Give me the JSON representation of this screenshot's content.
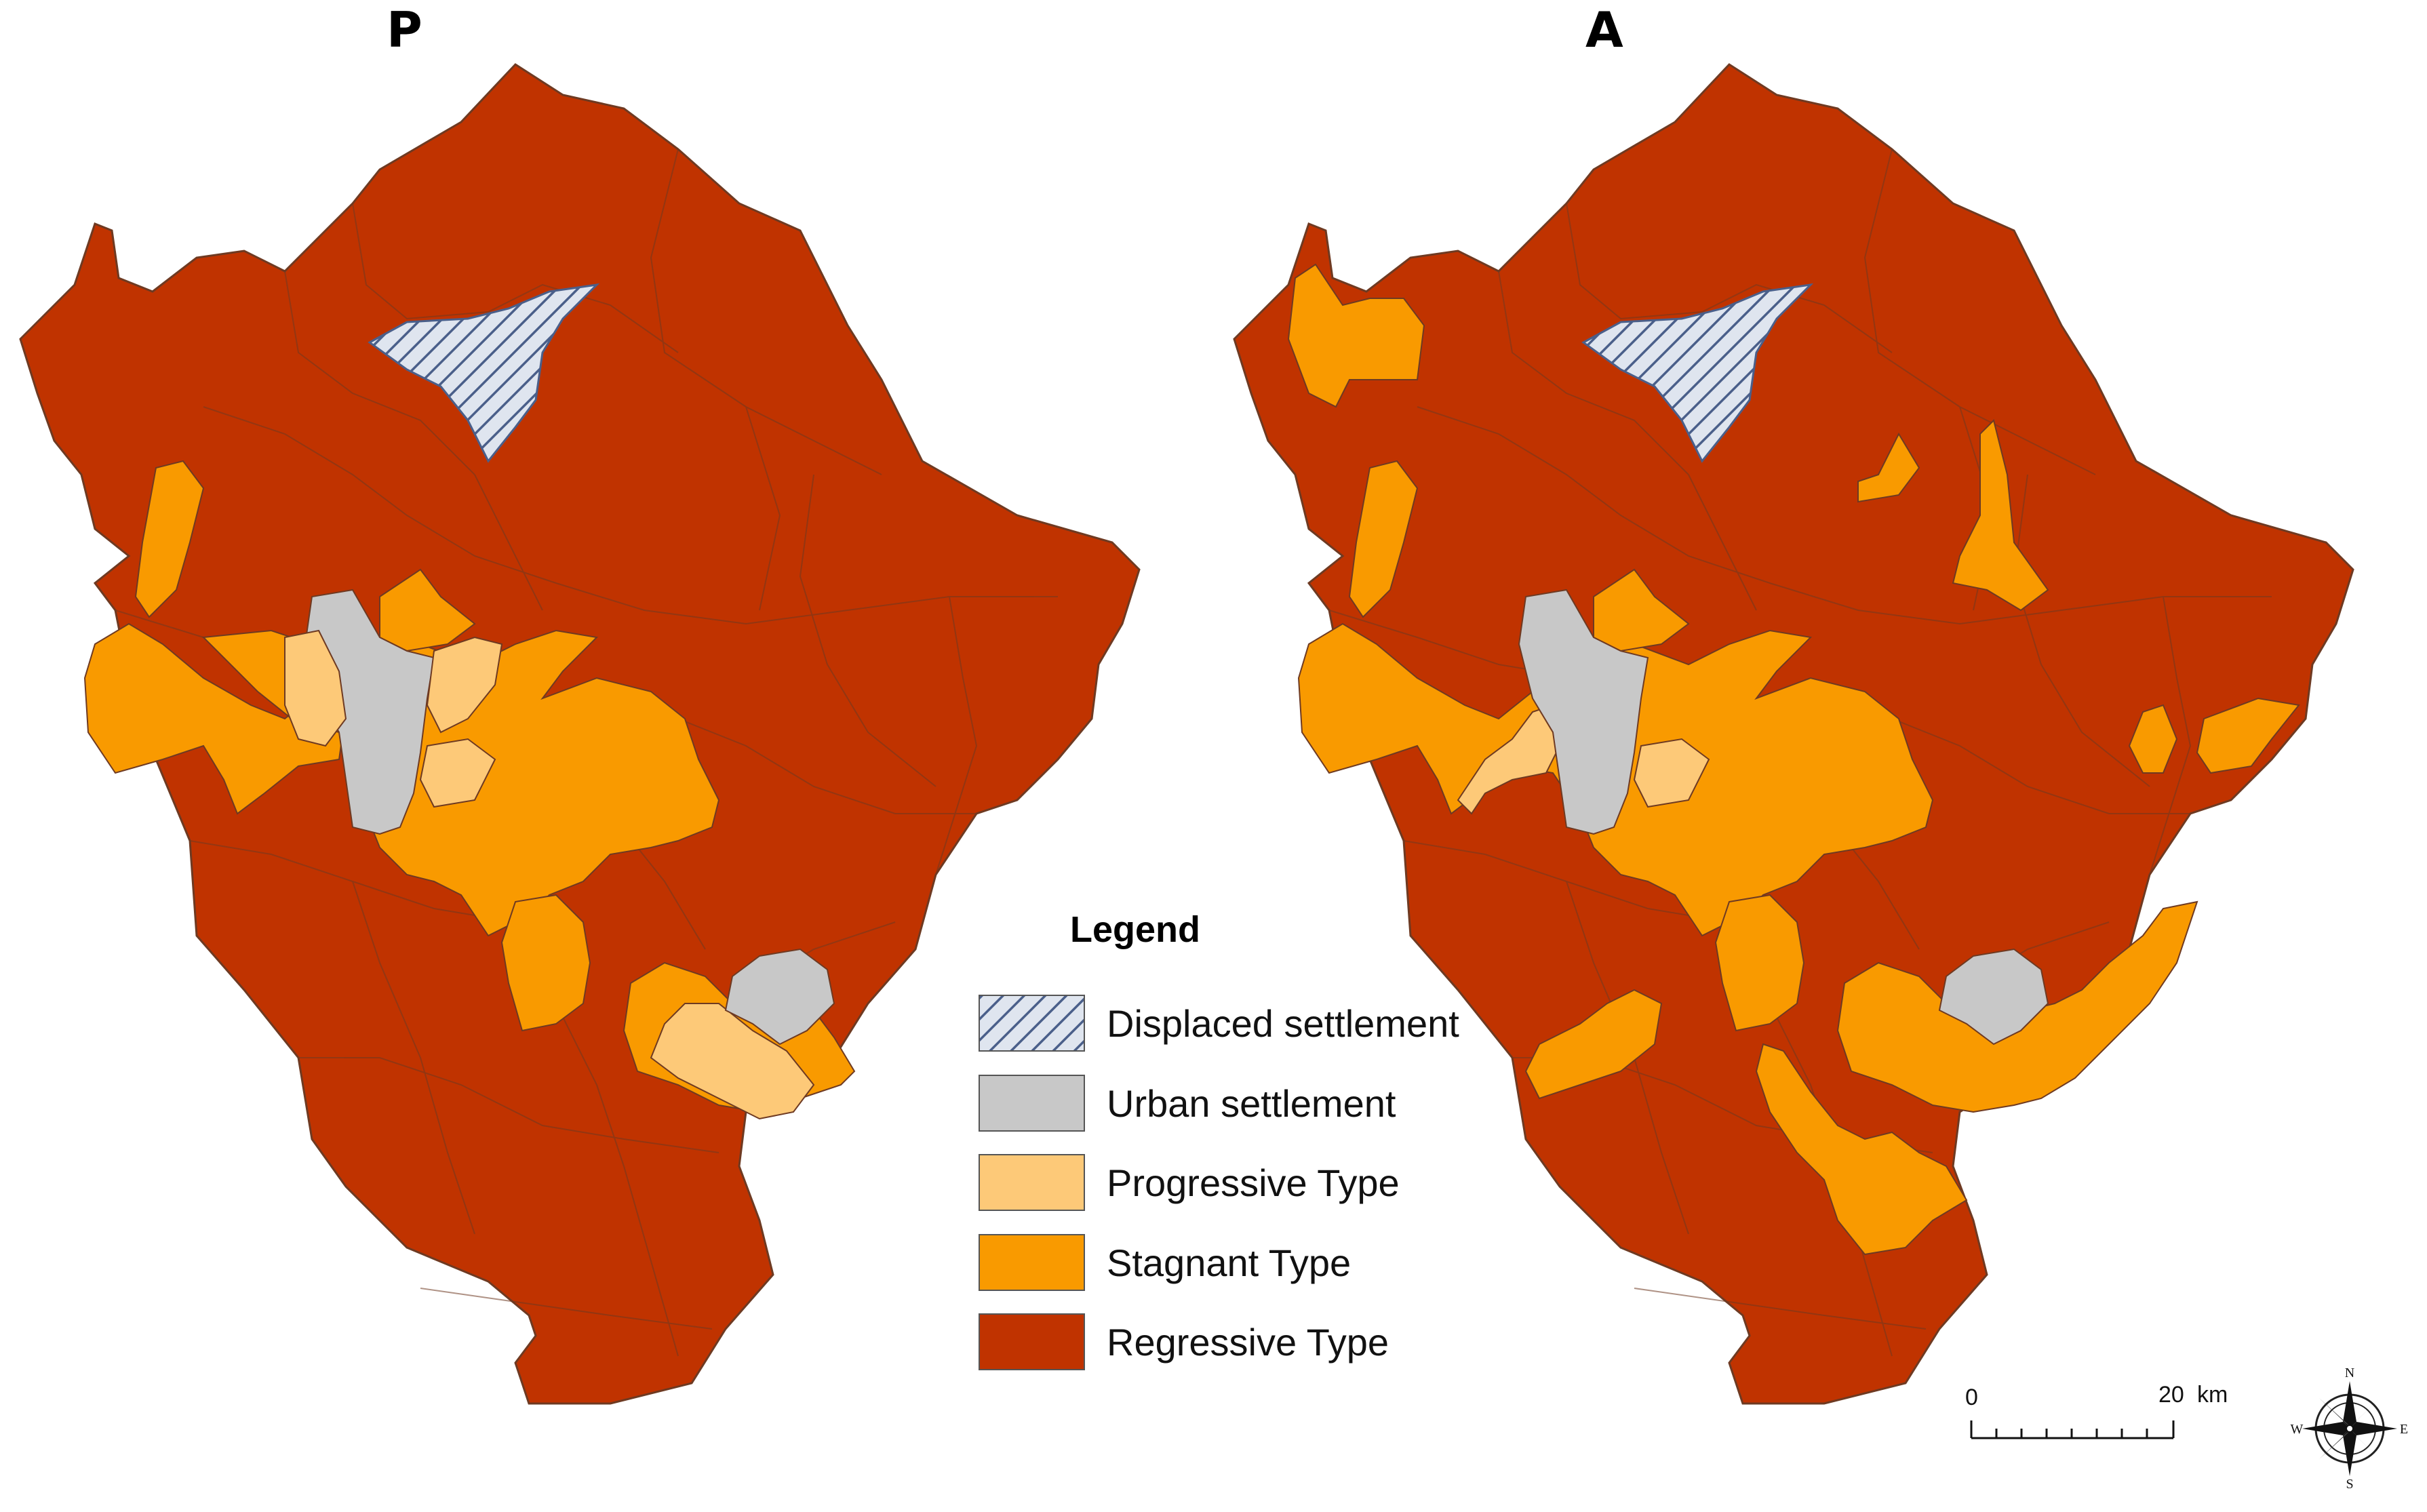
{
  "panels": [
    {
      "id": "P",
      "label": "P"
    },
    {
      "id": "A",
      "label": "A"
    }
  ],
  "colors": {
    "displaced_fill": "#dfe5ef",
    "displaced_stroke": "#4a5f8a",
    "urban": "#c8c8c8",
    "progressive": "#fdc978",
    "stagnant": "#f99a00",
    "regressive": "#c03300",
    "boundary": "#6e3a22"
  },
  "legend": {
    "title": "Legend",
    "items": [
      {
        "key": "displaced",
        "label": "Displaced settlement"
      },
      {
        "key": "urban",
        "label": "Urban settlement"
      },
      {
        "key": "progressive",
        "label": "Progressive Type"
      },
      {
        "key": "stagnant",
        "label": "Stagnant Type"
      },
      {
        "key": "regressive",
        "label": "Regressive Type"
      }
    ]
  },
  "scale_bar": {
    "start_label": "0",
    "end_label": "20",
    "unit": "km"
  },
  "north_arrow": {
    "n": "N",
    "s": "S",
    "e": "E",
    "w": "W"
  }
}
